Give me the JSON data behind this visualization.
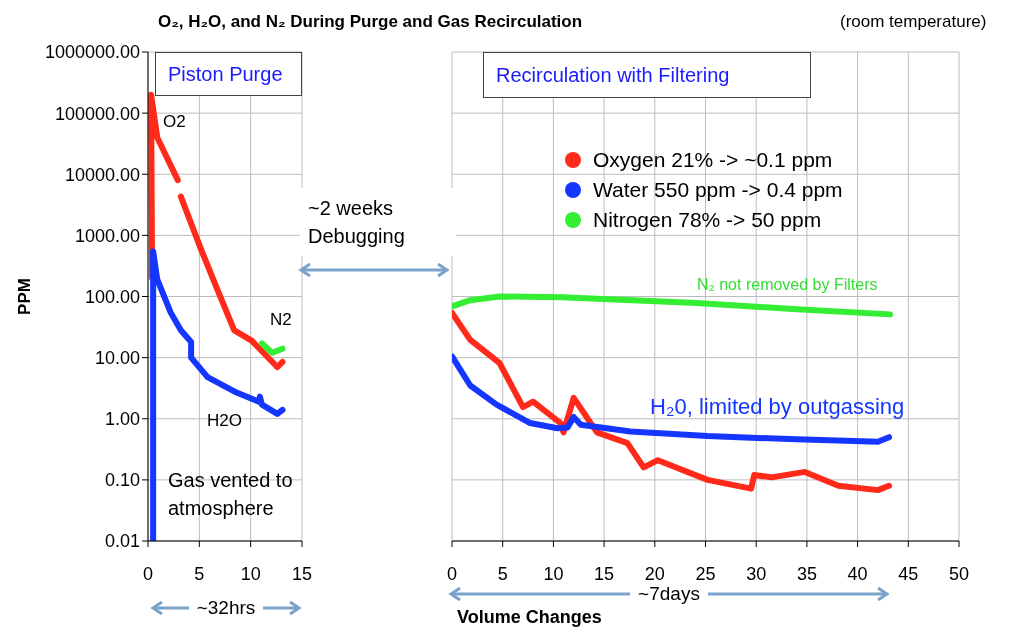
{
  "chart_data": [
    {
      "type": "line",
      "title": "O₂, H₂O, and N₂ During Purge and Gas Recirculation",
      "ylabel": "PPM",
      "xlim": [
        0,
        15
      ],
      "xticks": [
        0,
        5,
        10,
        15
      ],
      "ylim": [
        0.01,
        1000000
      ],
      "yticks": [
        {
          "value": 0.01,
          "label": "0.01"
        },
        {
          "value": 0.1,
          "label": "0.10"
        },
        {
          "value": 1,
          "label": "1.00"
        },
        {
          "value": 10,
          "label": "10.00"
        },
        {
          "value": 100,
          "label": "100.00"
        },
        {
          "value": 1000,
          "label": "1000.00"
        },
        {
          "value": 10000,
          "label": "10000.00"
        },
        {
          "value": 100000,
          "label": "100000.00"
        },
        {
          "value": 1000000,
          "label": "1000000.00"
        }
      ],
      "log": "y",
      "grid": true,
      "legend": false,
      "marker": "none",
      "line_style": "solid",
      "series": [
        {
          "color": "#ff2a1a",
          "x": [
            0.4,
            0.3,
            0.9,
            2.9,
            3.05,
            3.2,
            5.1,
            6.8,
            8.4,
            10.1,
            12.6,
            13.1
          ],
          "values": [
            200,
            200000,
            40000,
            8000,
            null,
            4300,
            630,
            125,
            28,
            19,
            7,
            8.5
          ]
        },
        {
          "color": "#1436ff",
          "x": [
            0.5,
            0.5,
            0.9,
            2.2,
            3.2,
            4.2,
            4.2,
            5.8,
            8.4,
            10.8,
            10.9,
            11.1,
            12.6,
            13.1
          ],
          "values": [
            0.01,
            550,
            190,
            55,
            28,
            18,
            10,
            4.8,
            2.8,
            1.9,
            2.3,
            1.7,
            1.2,
            1.4
          ]
        },
        {
          "color": "#33ee33",
          "x": [
            11.1,
            12.1,
            13.1
          ],
          "values": [
            17,
            12,
            14
          ]
        }
      ],
      "annotations": [
        "Piston Purge",
        "O2",
        "N2",
        "H2O",
        "Gas vented to atmosphere",
        "~2 weeks Debugging",
        "~32hrs"
      ]
    },
    {
      "type": "line",
      "xlabel": "Volume Changes",
      "xlim": [
        0,
        50
      ],
      "xticks": [
        0,
        5,
        10,
        15,
        20,
        25,
        30,
        35,
        40,
        45,
        50
      ],
      "ylim": [
        0.01,
        1000000
      ],
      "yticks": [
        0.01,
        0.1,
        1,
        10,
        100,
        1000,
        10000,
        100000,
        1000000
      ],
      "log": "y",
      "tick_labels": "x",
      "grid": true,
      "legend": "top right",
      "marker": "none",
      "line_style": "solid",
      "series": [
        {
          "name": "Oxygen 21% -> ~0.1 ppm",
          "color": "#ff2a1a",
          "x": [
            0,
            1.8,
            4.7,
            7,
            8,
            10.7,
            11,
            12,
            14.3,
            17.3,
            18.9,
            20.3,
            25.2,
            29.5,
            29.8,
            31.5,
            34.8,
            38.1,
            42,
            43.1
          ],
          "values": [
            54,
            19.5,
            8.1,
            1.55,
            1.9,
            0.85,
            0.6,
            2.2,
            0.6,
            0.4,
            0.16,
            0.21,
            0.1,
            0.072,
            0.12,
            0.11,
            0.135,
            0.08,
            0.068,
            0.08
          ]
        },
        {
          "name": "Water 550 ppm -> 0.4 ppm",
          "color": "#1436ff",
          "x": [
            0,
            1.8,
            4.4,
            7.7,
            10.4,
            11.4,
            12,
            12.7,
            17.6,
            25.2,
            34,
            42,
            43.1
          ],
          "values": [
            10.5,
            3.5,
            1.7,
            0.85,
            0.7,
            0.72,
            1.07,
            0.8,
            0.62,
            0.52,
            0.46,
            0.42,
            0.5
          ]
        },
        {
          "name": "Nitrogen 78% -> 50 ppm",
          "color": "#33ee33",
          "x": [
            0,
            1.8,
            4.7,
            10.9,
            24.1,
            34,
            43.2
          ],
          "values": [
            69,
            87,
            100,
            97,
            78,
            62,
            51
          ]
        }
      ],
      "annotations": [
        "Recirculation with Filtering",
        "(room temperature)",
        "N₂ not removed by Filters",
        "H₂0, limited by outgassing",
        "~7days"
      ]
    }
  ]
}
